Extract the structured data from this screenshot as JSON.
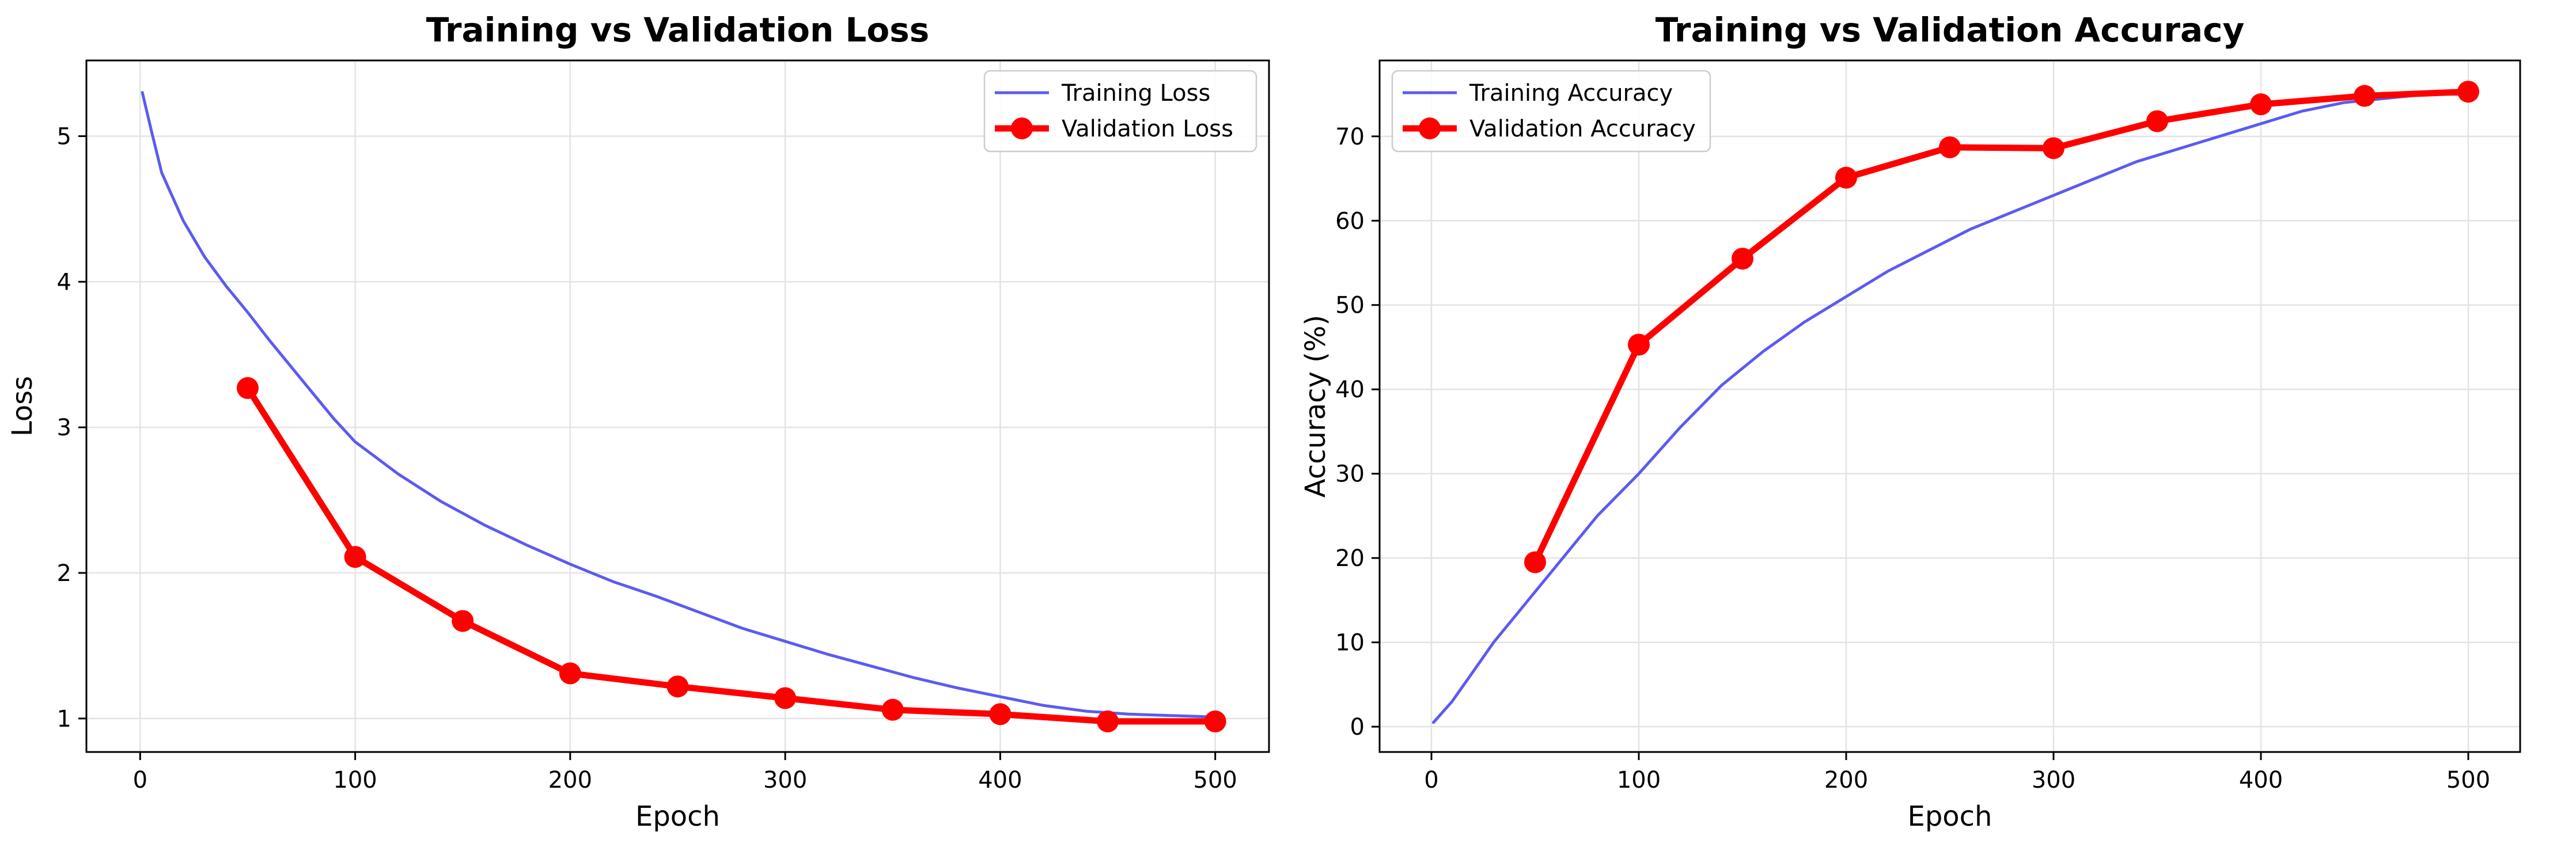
{
  "chart_data": [
    {
      "type": "line",
      "title": "Training vs Validation Loss",
      "xlabel": "Epoch",
      "ylabel": "Loss",
      "xlim": [
        -25,
        525
      ],
      "ylim": [
        0.77,
        5.52
      ],
      "xticks": [
        0,
        100,
        200,
        300,
        400,
        500
      ],
      "yticks": [
        1,
        2,
        3,
        4,
        5
      ],
      "grid": true,
      "legend_position": "upper right",
      "series": [
        {
          "name": "Training Loss",
          "style": "line",
          "color": "#5b5bf0",
          "x": [
            1,
            5,
            10,
            20,
            30,
            40,
            50,
            60,
            70,
            80,
            90,
            100,
            120,
            140,
            160,
            180,
            200,
            220,
            240,
            260,
            280,
            300,
            320,
            340,
            360,
            380,
            400,
            420,
            440,
            460,
            480,
            500
          ],
          "y": [
            5.3,
            5.05,
            4.75,
            4.42,
            4.17,
            3.97,
            3.79,
            3.6,
            3.42,
            3.24,
            3.06,
            2.9,
            2.68,
            2.49,
            2.33,
            2.19,
            2.06,
            1.94,
            1.84,
            1.73,
            1.62,
            1.53,
            1.44,
            1.36,
            1.28,
            1.21,
            1.15,
            1.09,
            1.05,
            1.03,
            1.02,
            1.01
          ]
        },
        {
          "name": "Validation Loss",
          "style": "line-marker",
          "color": "#ff0000",
          "x": [
            50,
            100,
            150,
            200,
            250,
            300,
            350,
            400,
            450,
            500
          ],
          "y": [
            3.27,
            2.11,
            1.67,
            1.31,
            1.22,
            1.14,
            1.06,
            1.03,
            0.98,
            0.98
          ]
        }
      ]
    },
    {
      "type": "line",
      "title": "Training vs Validation Accuracy",
      "xlabel": "Epoch",
      "ylabel": "Accuracy (%)",
      "xlim": [
        -25,
        525
      ],
      "ylim": [
        -3,
        79
      ],
      "xticks": [
        0,
        100,
        200,
        300,
        400,
        500
      ],
      "yticks": [
        0,
        10,
        20,
        30,
        40,
        50,
        60,
        70
      ],
      "grid": true,
      "legend_position": "upper left",
      "series": [
        {
          "name": "Training Accuracy",
          "style": "line",
          "color": "#5b5bf0",
          "x": [
            1,
            10,
            20,
            30,
            40,
            50,
            60,
            70,
            80,
            90,
            100,
            120,
            140,
            160,
            180,
            200,
            220,
            240,
            260,
            280,
            300,
            320,
            340,
            360,
            380,
            400,
            420,
            440,
            460,
            480,
            500
          ],
          "y": [
            0.5,
            3,
            6.5,
            10,
            13,
            16,
            19,
            22,
            25,
            27.5,
            30,
            35.5,
            40.5,
            44.5,
            48,
            51,
            54,
            56.5,
            59,
            61,
            63,
            65,
            67,
            68.5,
            70,
            71.5,
            73,
            74,
            74.5,
            75,
            75
          ]
        },
        {
          "name": "Validation Accuracy",
          "style": "line-marker",
          "color": "#ff0000",
          "x": [
            50,
            100,
            150,
            200,
            250,
            300,
            350,
            400,
            450,
            500
          ],
          "y": [
            19.5,
            45.3,
            55.5,
            65.1,
            68.7,
            68.6,
            71.8,
            73.8,
            74.8,
            75.3
          ]
        }
      ]
    }
  ]
}
